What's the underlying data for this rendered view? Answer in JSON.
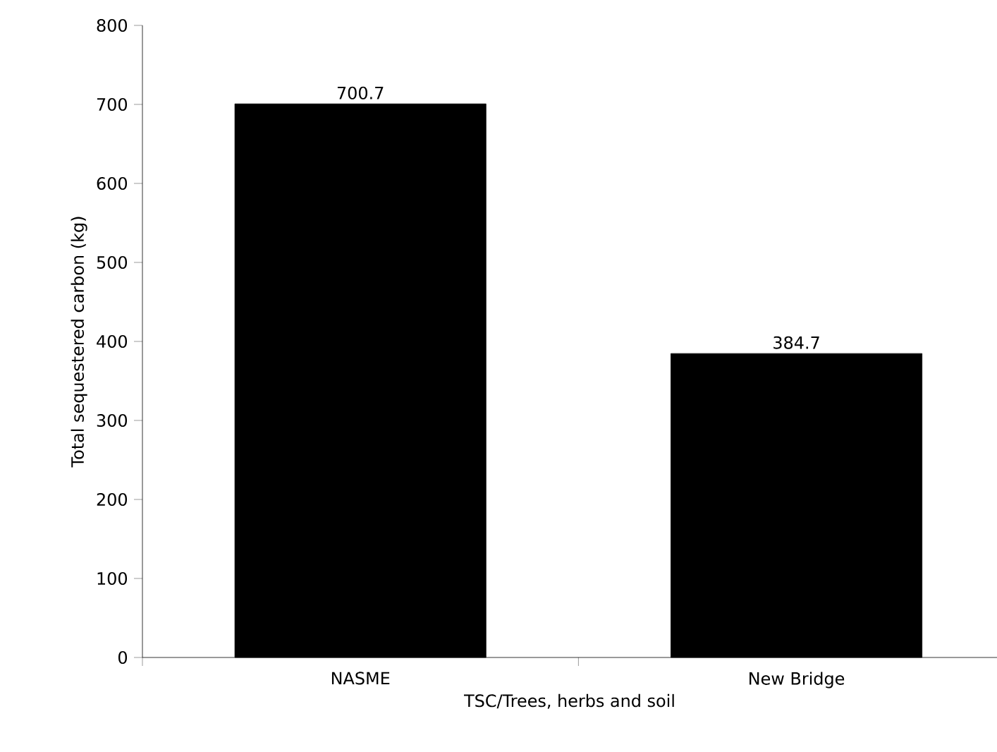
{
  "chart_data": {
    "type": "bar",
    "xlabel": "TSC/Trees, herbs and soil",
    "ylabel": "Total sequestered carbon (kg)",
    "categories": [
      "NASME",
      "New Bridge"
    ],
    "values": [
      700.7,
      384.7
    ],
    "color": "#000000",
    "ylim": [
      0,
      800
    ],
    "yticks": [
      0,
      100,
      200,
      300,
      400,
      500,
      600,
      700,
      800
    ],
    "grid": false,
    "data_labels": true
  }
}
